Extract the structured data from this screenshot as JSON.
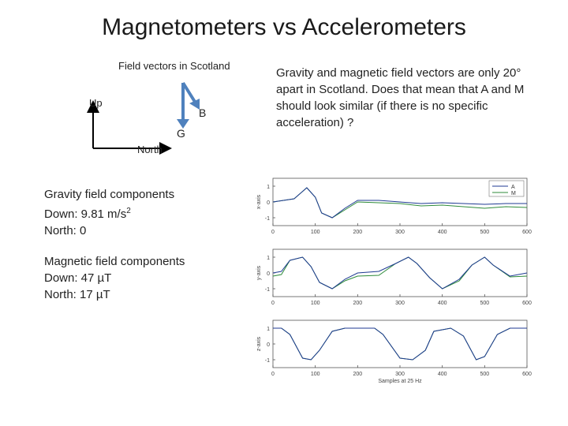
{
  "title": "Magnetometers vs Accelerometers",
  "diagram": {
    "title": "Field vectors in Scotland",
    "up_label": "Up",
    "north_label": "North",
    "g_label": "G",
    "b_label": "B"
  },
  "description": "Gravity and magnetic field vectors are only 20° apart in Scotland. Does that mean that A and M should look similar (if there is no specific acceleration) ?",
  "gravity": {
    "heading": "Gravity field components",
    "down_label": "Down: 9.81 m/s",
    "down_sup": "2",
    "north": "North: 0"
  },
  "magnetic": {
    "heading": "Magnetic field components",
    "down": "Down: 47 µT",
    "north": "North: 17 µT"
  },
  "colors": {
    "accent_arrow": "#4f81bd",
    "series_A": "#1f3a93",
    "series_M": "#2e8b3a"
  },
  "chart_data": [
    {
      "type": "line",
      "ylabel": "x-axis",
      "x": [
        0,
        50,
        80,
        100,
        115,
        140,
        170,
        200,
        250,
        300,
        350,
        400,
        450,
        500,
        550,
        600
      ],
      "ylim": [
        -1.5,
        1.5
      ],
      "xlim": [
        0,
        600
      ],
      "yticks": [
        "1",
        "0",
        "-1"
      ],
      "xticks": [
        "0",
        "100",
        "200",
        "300",
        "400",
        "500",
        "600"
      ],
      "legend": [
        "A",
        "M"
      ],
      "legend_position": "top-right",
      "series": [
        {
          "name": "A",
          "values": [
            0,
            0.2,
            0.9,
            0.3,
            -0.7,
            -1.0,
            -0.4,
            0.1,
            0.1,
            0.0,
            -0.1,
            -0.05,
            -0.1,
            -0.15,
            -0.1,
            -0.1
          ]
        },
        {
          "name": "M",
          "values": [
            0,
            0.2,
            0.9,
            0.3,
            -0.7,
            -1.0,
            -0.5,
            0.0,
            -0.05,
            -0.1,
            -0.25,
            -0.2,
            -0.3,
            -0.4,
            -0.3,
            -0.35
          ]
        }
      ]
    },
    {
      "type": "line",
      "ylabel": "y-axis",
      "x": [
        0,
        20,
        40,
        70,
        90,
        110,
        140,
        170,
        200,
        250,
        290,
        320,
        340,
        370,
        400,
        440,
        470,
        500,
        520,
        560,
        600
      ],
      "ylim": [
        -1.5,
        1.5
      ],
      "xlim": [
        0,
        600
      ],
      "yticks": [
        "1",
        "0",
        "-1"
      ],
      "xticks": [
        "0",
        "100",
        "200",
        "300",
        "400",
        "500",
        "600"
      ],
      "series": [
        {
          "name": "A",
          "values": [
            0,
            0.1,
            0.8,
            1.0,
            0.4,
            -0.6,
            -1.0,
            -0.4,
            0.0,
            0.1,
            0.6,
            1.0,
            0.6,
            -0.3,
            -1.0,
            -0.4,
            0.5,
            1.0,
            0.5,
            -0.2,
            0.0
          ]
        },
        {
          "name": "M",
          "values": [
            -0.2,
            -0.1,
            0.8,
            1.0,
            0.4,
            -0.6,
            -1.0,
            -0.5,
            -0.2,
            -0.15,
            0.6,
            1.0,
            0.6,
            -0.3,
            -1.0,
            -0.5,
            0.5,
            1.0,
            0.5,
            -0.25,
            -0.2
          ]
        }
      ]
    },
    {
      "type": "line",
      "ylabel": "z-axis",
      "xlabel": "Samples at 25 Hz",
      "x": [
        0,
        20,
        40,
        70,
        90,
        110,
        140,
        170,
        200,
        240,
        260,
        300,
        330,
        360,
        380,
        420,
        450,
        480,
        500,
        530,
        560,
        600
      ],
      "ylim": [
        -1.5,
        1.5
      ],
      "xlim": [
        0,
        600
      ],
      "yticks": [
        "1",
        "0",
        "-1"
      ],
      "xticks": [
        "0",
        "100",
        "200",
        "300",
        "400",
        "500",
        "600"
      ],
      "series": [
        {
          "name": "A",
          "values": [
            1,
            1,
            0.6,
            -0.9,
            -1.0,
            -0.4,
            0.8,
            1.0,
            1.0,
            1.0,
            0.6,
            -0.9,
            -1.0,
            -0.4,
            0.8,
            1.0,
            0.5,
            -1.0,
            -0.8,
            0.6,
            1.0,
            1.0
          ]
        },
        {
          "name": "M",
          "values": [
            1,
            1,
            0.6,
            -0.9,
            -1.0,
            -0.4,
            0.8,
            1.0,
            1.0,
            1.0,
            0.6,
            -0.9,
            -1.0,
            -0.4,
            0.8,
            1.0,
            0.5,
            -1.0,
            -0.8,
            0.6,
            1.0,
            1.0
          ]
        }
      ]
    }
  ]
}
